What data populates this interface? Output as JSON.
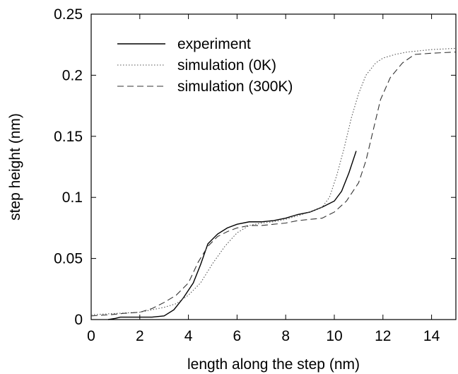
{
  "chart_data": {
    "type": "line",
    "title": "",
    "xlabel": "length along the step (nm)",
    "ylabel": "step height (nm)",
    "xlim": [
      0,
      15
    ],
    "ylim": [
      0,
      0.25
    ],
    "x_ticks": [
      0,
      2,
      4,
      6,
      8,
      10,
      12,
      14
    ],
    "y_ticks": [
      0,
      0.05,
      0.1,
      0.15,
      0.2,
      0.25
    ],
    "x_tick_labels": [
      "0",
      "2",
      "4",
      "6",
      "8",
      "10",
      "12",
      "14"
    ],
    "y_tick_labels": [
      "0",
      "0.05",
      "0.1",
      "0.15",
      "0.2",
      "0.25"
    ],
    "grid": false,
    "legend_position": "top-left",
    "series": [
      {
        "name": "experiment",
        "style": "solid",
        "color": "#000000",
        "points": [
          [
            0.7,
            0.0
          ],
          [
            1.0,
            0.001
          ],
          [
            1.2,
            0.002
          ],
          [
            2.0,
            0.002
          ],
          [
            2.5,
            0.002
          ],
          [
            3.0,
            0.003
          ],
          [
            3.4,
            0.008
          ],
          [
            3.8,
            0.018
          ],
          [
            4.2,
            0.03
          ],
          [
            4.5,
            0.045
          ],
          [
            4.8,
            0.062
          ],
          [
            5.2,
            0.07
          ],
          [
            5.6,
            0.075
          ],
          [
            6.0,
            0.078
          ],
          [
            6.5,
            0.08
          ],
          [
            7.0,
            0.08
          ],
          [
            7.5,
            0.081
          ],
          [
            8.0,
            0.083
          ],
          [
            8.5,
            0.086
          ],
          [
            9.0,
            0.088
          ],
          [
            9.5,
            0.092
          ],
          [
            10.0,
            0.097
          ],
          [
            10.3,
            0.105
          ],
          [
            10.6,
            0.12
          ],
          [
            10.9,
            0.138
          ]
        ]
      },
      {
        "name": "simulation (0K)",
        "style": "dotted",
        "color": "#555555",
        "points": [
          [
            0.0,
            0.004
          ],
          [
            1.0,
            0.005
          ],
          [
            2.0,
            0.006
          ],
          [
            2.5,
            0.008
          ],
          [
            3.0,
            0.01
          ],
          [
            3.5,
            0.013
          ],
          [
            4.0,
            0.02
          ],
          [
            4.5,
            0.03
          ],
          [
            5.0,
            0.046
          ],
          [
            5.5,
            0.06
          ],
          [
            6.0,
            0.071
          ],
          [
            6.5,
            0.077
          ],
          [
            7.0,
            0.079
          ],
          [
            7.5,
            0.08
          ],
          [
            8.0,
            0.082
          ],
          [
            8.5,
            0.085
          ],
          [
            9.0,
            0.088
          ],
          [
            9.5,
            0.092
          ],
          [
            9.8,
            0.1
          ],
          [
            10.1,
            0.118
          ],
          [
            10.4,
            0.14
          ],
          [
            10.7,
            0.165
          ],
          [
            11.0,
            0.185
          ],
          [
            11.3,
            0.2
          ],
          [
            11.7,
            0.21
          ],
          [
            12.0,
            0.214
          ],
          [
            12.5,
            0.217
          ],
          [
            13.0,
            0.219
          ],
          [
            14.0,
            0.221
          ],
          [
            15.0,
            0.222
          ]
        ]
      },
      {
        "name": "simulation (300K)",
        "style": "dashed",
        "color": "#333333",
        "points": [
          [
            0.0,
            0.003
          ],
          [
            0.8,
            0.004
          ],
          [
            1.3,
            0.005
          ],
          [
            2.0,
            0.006
          ],
          [
            2.5,
            0.009
          ],
          [
            3.0,
            0.014
          ],
          [
            3.5,
            0.02
          ],
          [
            4.0,
            0.03
          ],
          [
            4.4,
            0.047
          ],
          [
            4.8,
            0.06
          ],
          [
            5.2,
            0.068
          ],
          [
            5.6,
            0.072
          ],
          [
            6.0,
            0.075
          ],
          [
            6.5,
            0.077
          ],
          [
            7.0,
            0.077
          ],
          [
            7.5,
            0.078
          ],
          [
            8.0,
            0.079
          ],
          [
            8.5,
            0.081
          ],
          [
            9.0,
            0.082
          ],
          [
            9.5,
            0.083
          ],
          [
            10.0,
            0.088
          ],
          [
            10.5,
            0.097
          ],
          [
            11.0,
            0.112
          ],
          [
            11.3,
            0.13
          ],
          [
            11.6,
            0.155
          ],
          [
            11.9,
            0.18
          ],
          [
            12.3,
            0.198
          ],
          [
            12.8,
            0.21
          ],
          [
            13.3,
            0.217
          ],
          [
            14.0,
            0.218
          ],
          [
            15.0,
            0.219
          ]
        ]
      }
    ]
  }
}
